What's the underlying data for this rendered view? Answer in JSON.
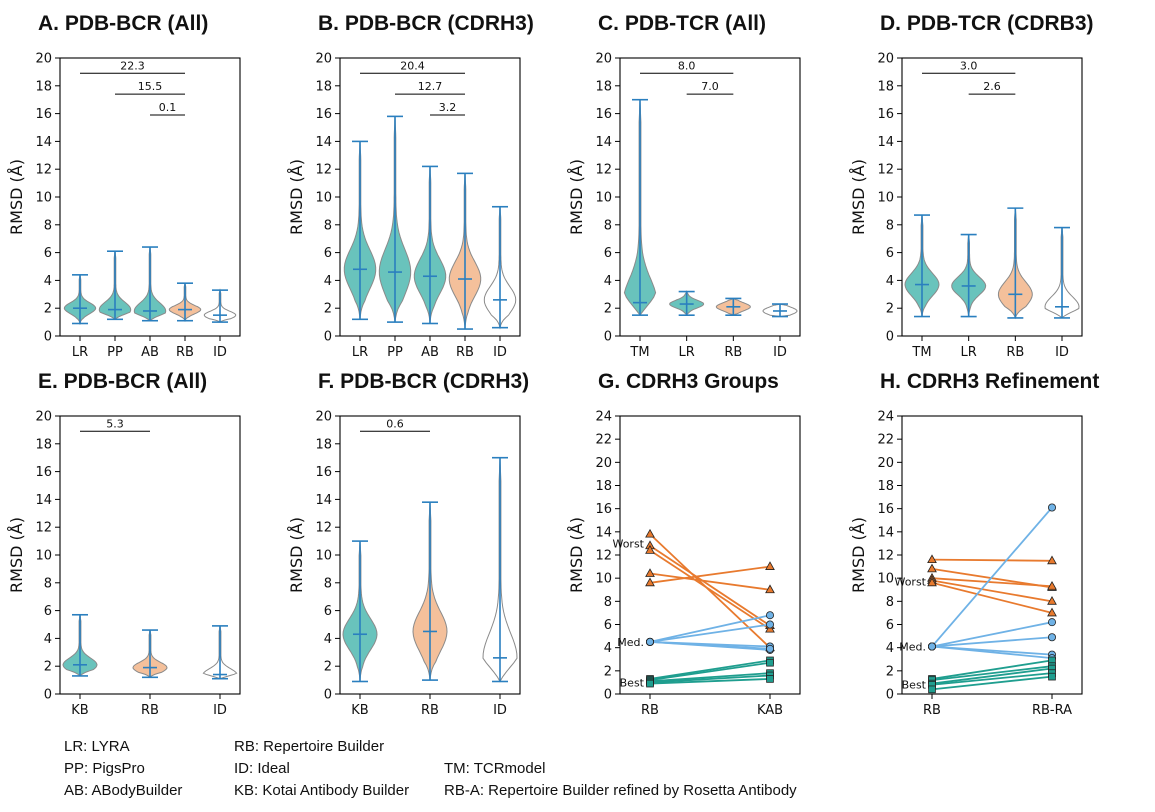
{
  "chart_data": [
    {
      "type": "violin",
      "title": "A.  PDB-BCR (All)",
      "ylabel": "RMSD (Å)",
      "ylim": [
        0,
        20
      ],
      "yticks": [
        0,
        2,
        4,
        6,
        8,
        10,
        12,
        14,
        16,
        18,
        20
      ],
      "categories": [
        "LR",
        "PP",
        "AB",
        "RB",
        "ID"
      ],
      "series": [
        {
          "min": 0.9,
          "median": 2.0,
          "max": 4.4,
          "fill": "#4fb8b0"
        },
        {
          "min": 1.2,
          "median": 1.9,
          "max": 6.1,
          "fill": "#4fb8b0"
        },
        {
          "min": 1.1,
          "median": 1.8,
          "max": 6.4,
          "fill": "#4fb8b0"
        },
        {
          "min": 1.1,
          "median": 1.9,
          "max": 3.8,
          "fill": "#f2b58a"
        },
        {
          "min": 1.0,
          "median": 1.5,
          "max": 3.3,
          "fill": "#ffffff"
        }
      ],
      "annotations": [
        {
          "label": "22.3",
          "from": "LR",
          "to": "RB",
          "y": 18.9
        },
        {
          "label": "15.5",
          "from": "PP",
          "to": "RB",
          "y": 17.4
        },
        {
          "label": "0.1",
          "from": "AB",
          "to": "RB",
          "y": 15.9
        }
      ]
    },
    {
      "type": "violin",
      "title": "B.  PDB-BCR (CDRH3)",
      "ylabel": "RMSD (Å)",
      "ylim": [
        0,
        20
      ],
      "yticks": [
        0,
        2,
        4,
        6,
        8,
        10,
        12,
        14,
        16,
        18,
        20
      ],
      "categories": [
        "LR",
        "PP",
        "AB",
        "RB",
        "ID"
      ],
      "series": [
        {
          "min": 1.2,
          "median": 4.8,
          "max": 14.0,
          "fill": "#4fb8b0"
        },
        {
          "min": 1.0,
          "median": 4.6,
          "max": 15.8,
          "fill": "#4fb8b0"
        },
        {
          "min": 0.9,
          "median": 4.3,
          "max": 12.2,
          "fill": "#4fb8b0"
        },
        {
          "min": 0.5,
          "median": 4.1,
          "max": 11.7,
          "fill": "#f2b58a"
        },
        {
          "min": 0.6,
          "median": 2.6,
          "max": 9.3,
          "fill": "#ffffff"
        }
      ],
      "annotations": [
        {
          "label": "20.4",
          "from": "LR",
          "to": "RB",
          "y": 18.9
        },
        {
          "label": "12.7",
          "from": "PP",
          "to": "RB",
          "y": 17.4
        },
        {
          "label": "3.2",
          "from": "AB",
          "to": "RB",
          "y": 15.9
        }
      ]
    },
    {
      "type": "violin",
      "title": "C.  PDB-TCR (All)",
      "ylabel": "RMSD (Å)",
      "ylim": [
        0,
        20
      ],
      "yticks": [
        0,
        2,
        4,
        6,
        8,
        10,
        12,
        14,
        16,
        18,
        20
      ],
      "categories": [
        "TM",
        "LR",
        "RB",
        "ID"
      ],
      "series": [
        {
          "min": 1.5,
          "median": 2.4,
          "max": 17.0,
          "fill": "#4fb8b0"
        },
        {
          "min": 1.5,
          "median": 2.3,
          "max": 3.2,
          "fill": "#4fb8b0"
        },
        {
          "min": 1.5,
          "median": 2.1,
          "max": 2.7,
          "fill": "#f2b58a"
        },
        {
          "min": 1.4,
          "median": 1.8,
          "max": 2.3,
          "fill": "#ffffff"
        }
      ],
      "annotations": [
        {
          "label": "8.0",
          "from": "TM",
          "to": "RB",
          "y": 18.9
        },
        {
          "label": "7.0",
          "from": "LR",
          "to": "RB",
          "y": 17.4
        }
      ]
    },
    {
      "type": "violin",
      "title": "D.  PDB-TCR (CDRB3)",
      "ylabel": "RMSD (Å)",
      "ylim": [
        0,
        20
      ],
      "yticks": [
        0,
        2,
        4,
        6,
        8,
        10,
        12,
        14,
        16,
        18,
        20
      ],
      "categories": [
        "TM",
        "LR",
        "RB",
        "ID"
      ],
      "series": [
        {
          "min": 1.4,
          "median": 3.7,
          "max": 8.7,
          "fill": "#4fb8b0"
        },
        {
          "min": 1.4,
          "median": 3.6,
          "max": 7.3,
          "fill": "#4fb8b0"
        },
        {
          "min": 1.3,
          "median": 3.0,
          "max": 9.2,
          "fill": "#f2b58a"
        },
        {
          "min": 1.3,
          "median": 2.1,
          "max": 7.8,
          "fill": "#ffffff"
        }
      ],
      "annotations": [
        {
          "label": "3.0",
          "from": "TM",
          "to": "RB",
          "y": 18.9
        },
        {
          "label": "2.6",
          "from": "LR",
          "to": "RB",
          "y": 17.4
        }
      ]
    },
    {
      "type": "violin",
      "title": "E.  PDB-BCR (All)",
      "ylabel": "RMSD (Å)",
      "ylim": [
        0,
        20
      ],
      "yticks": [
        0,
        2,
        4,
        6,
        8,
        10,
        12,
        14,
        16,
        18,
        20
      ],
      "categories": [
        "KB",
        "RB",
        "ID"
      ],
      "series": [
        {
          "min": 1.3,
          "median": 2.1,
          "max": 5.7,
          "fill": "#4fb8b0"
        },
        {
          "min": 1.2,
          "median": 1.9,
          "max": 4.6,
          "fill": "#f2b58a"
        },
        {
          "min": 1.1,
          "median": 1.4,
          "max": 4.9,
          "fill": "#ffffff"
        }
      ],
      "annotations": [
        {
          "label": "5.3",
          "from": "KB",
          "to": "RB",
          "y": 18.9
        }
      ]
    },
    {
      "type": "violin",
      "title": "F.  PDB-BCR (CDRH3)",
      "ylabel": "RMSD (Å)",
      "ylim": [
        0,
        20
      ],
      "yticks": [
        0,
        2,
        4,
        6,
        8,
        10,
        12,
        14,
        16,
        18,
        20
      ],
      "categories": [
        "KB",
        "RB",
        "ID"
      ],
      "series": [
        {
          "min": 0.9,
          "median": 4.3,
          "max": 11.0,
          "fill": "#4fb8b0"
        },
        {
          "min": 1.0,
          "median": 4.5,
          "max": 13.8,
          "fill": "#f2b58a"
        },
        {
          "min": 0.9,
          "median": 2.6,
          "max": 17.0,
          "fill": "#ffffff"
        }
      ],
      "annotations": [
        {
          "label": "0.6",
          "from": "KB",
          "to": "RB",
          "y": 18.9
        }
      ]
    },
    {
      "type": "line",
      "title": "G.  CDRH3 Groups",
      "ylabel": "RMSD (Å)",
      "ylim": [
        0,
        24
      ],
      "yticks": [
        0,
        2,
        4,
        6,
        8,
        10,
        12,
        14,
        16,
        18,
        20,
        22,
        24
      ],
      "categories": [
        "RB",
        "KAB"
      ],
      "groups": [
        {
          "label": "Worst",
          "label_y": 13.0,
          "color": "#e87a2e",
          "marker": "triangle",
          "pairs": [
            [
              13.8,
              4.0
            ],
            [
              12.8,
              5.9
            ],
            [
              12.4,
              5.6
            ],
            [
              10.4,
              9.0
            ],
            [
              9.6,
              11.0
            ]
          ]
        },
        {
          "label": "Med.",
          "label_y": 4.5,
          "color": "#6fb2e6",
          "marker": "circle",
          "pairs": [
            [
              4.5,
              6.8
            ],
            [
              4.5,
              6.0
            ],
            [
              4.5,
              4.1
            ],
            [
              4.5,
              3.8
            ],
            [
              4.5,
              3.9
            ]
          ]
        },
        {
          "label": "Best",
          "label_y": 1.0,
          "color": "#1f9e8f",
          "marker": "square",
          "pairs": [
            [
              1.3,
              2.9
            ],
            [
              1.2,
              2.7
            ],
            [
              1.1,
              1.8
            ],
            [
              1.0,
              1.6
            ],
            [
              0.9,
              1.3
            ]
          ]
        }
      ]
    },
    {
      "type": "line",
      "title": "H.  CDRH3 Refinement",
      "ylabel": "RMSD (Å)",
      "ylim": [
        0,
        24
      ],
      "yticks": [
        0,
        2,
        4,
        6,
        8,
        10,
        12,
        14,
        16,
        18,
        20,
        22,
        24
      ],
      "categories": [
        "RB",
        "RB-RA"
      ],
      "groups": [
        {
          "label": "Worst",
          "label_y": 9.7,
          "color": "#e87a2e",
          "marker": "triangle",
          "pairs": [
            [
              11.6,
              11.5
            ],
            [
              10.8,
              9.2
            ],
            [
              10.0,
              9.3
            ],
            [
              9.8,
              8.0
            ],
            [
              9.6,
              7.0
            ]
          ]
        },
        {
          "label": "Med.",
          "label_y": 4.1,
          "color": "#6fb2e6",
          "marker": "circle",
          "pairs": [
            [
              4.1,
              16.1
            ],
            [
              4.1,
              6.2
            ],
            [
              4.1,
              4.9
            ],
            [
              4.1,
              3.4
            ],
            [
              4.1,
              3.1
            ]
          ]
        },
        {
          "label": "Best",
          "label_y": 0.8,
          "color": "#1f9e8f",
          "marker": "square",
          "pairs": [
            [
              1.3,
              2.9
            ],
            [
              1.2,
              2.4
            ],
            [
              0.9,
              2.2
            ],
            [
              0.8,
              1.8
            ],
            [
              0.4,
              1.5
            ]
          ]
        }
      ]
    }
  ],
  "legend": [
    {
      "text": "LR: LYRA"
    },
    {
      "text": "PP: PigsPro"
    },
    {
      "text": "AB: ABodyBuilder"
    },
    {
      "text": "RB: Repertoire Builder"
    },
    {
      "text": "ID: Ideal"
    },
    {
      "text": "KB: Kotai Antibody Builder"
    },
    {
      "text": "TM: TCRmodel"
    },
    {
      "text": "RB-A: Repertoire Builder refined by Rosetta Antibody"
    }
  ],
  "colors": {
    "median_line": "#2a7fbf",
    "violin_edge": "#8a8a8a",
    "axis": "#000000"
  }
}
